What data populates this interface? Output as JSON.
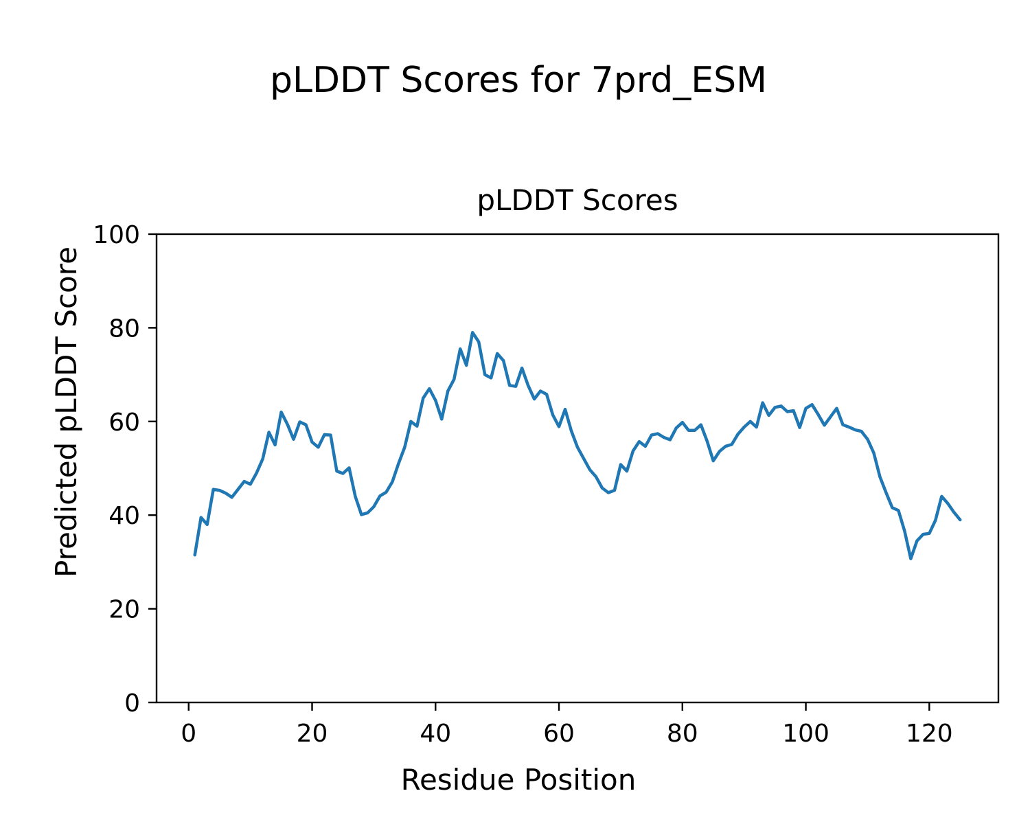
{
  "figure": {
    "suptitle": "pLDDT Scores for 7prd_ESM"
  },
  "chart_data": {
    "type": "line",
    "title": "pLDDT Scores",
    "xlabel": "Residue Position",
    "ylabel": "Predicted pLDDT Score",
    "legend": null,
    "grid": false,
    "line_color": "#1f77b4",
    "background_color": "#ffffff",
    "text_color": "#000000",
    "xlim": [
      -5.2,
      131.2
    ],
    "ylim": [
      0,
      100
    ],
    "xticks": [
      0,
      20,
      40,
      60,
      80,
      100,
      120
    ],
    "yticks": [
      0,
      20,
      40,
      60,
      80,
      100
    ],
    "series": [
      {
        "name": "pLDDT",
        "x_start": 1,
        "x_step": 1,
        "values": [
          31.5,
          39.5,
          38,
          45.5,
          45.3,
          44.7,
          43.8,
          45.5,
          47.2,
          46.6,
          49,
          52,
          57.7,
          55,
          62,
          59.4,
          56.2,
          59.9,
          59.3,
          55.6,
          54.5,
          57.2,
          57.1,
          49.4,
          48.9,
          50.1,
          44,
          40.1,
          40.5,
          41.8,
          44.1,
          44.9,
          47.1,
          51,
          54.5,
          60,
          59,
          65,
          67,
          64.5,
          60.5,
          66.5,
          69,
          75.5,
          72,
          79,
          77,
          70,
          69.3,
          74.5,
          73,
          67.7,
          67.5,
          71.4,
          67.7,
          64.8,
          66.5,
          65.8,
          61.4,
          58.9,
          62.6,
          58,
          54.5,
          52.1,
          49.7,
          48.2,
          45.8,
          44.8,
          45.3,
          50.8,
          49.4,
          53.7,
          55.7,
          54.7,
          57.1,
          57.4,
          56.6,
          56.1,
          58.6,
          59.8,
          58.1,
          58.1,
          59.3,
          55.8,
          51.6,
          53.6,
          54.7,
          55.1,
          57.3,
          58.8,
          60,
          58.8,
          64,
          61.3,
          63,
          63.3,
          62.1,
          62.3,
          58.7,
          62.8,
          63.6,
          61.5,
          59.2,
          61,
          62.8,
          59.3,
          58.8,
          58.2,
          57.9,
          56.2,
          53.3,
          48.2,
          44.8,
          41.6,
          41,
          36.6,
          30.7,
          34.5,
          35.9,
          36.1,
          38.9,
          44,
          42.5,
          40.6,
          39
        ]
      }
    ]
  }
}
